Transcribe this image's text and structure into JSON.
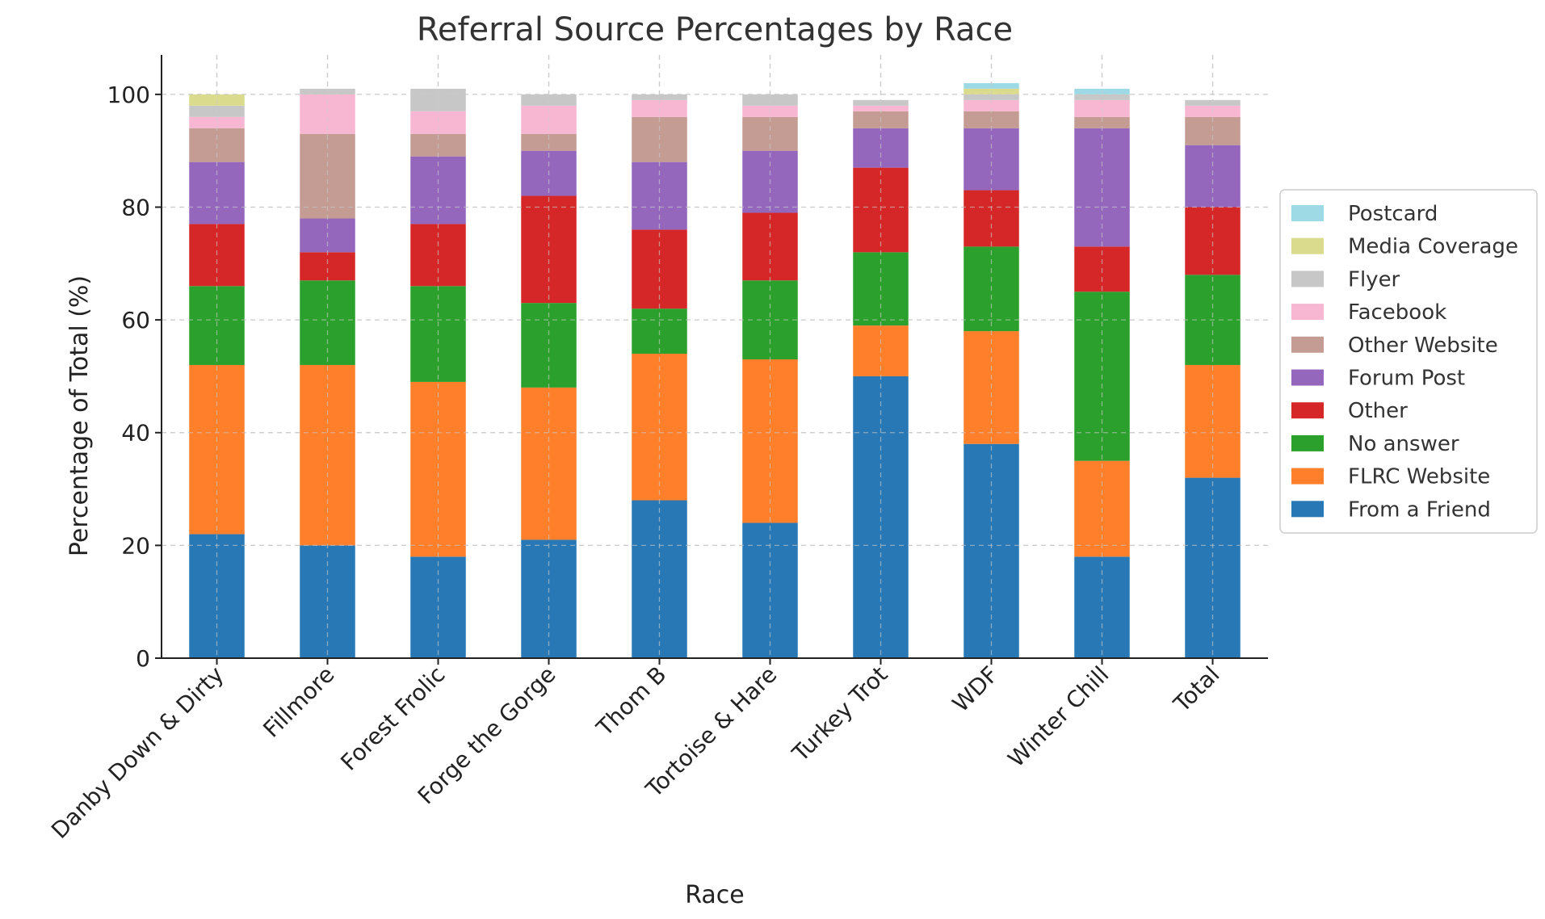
{
  "chart_data": {
    "type": "bar",
    "stacked": true,
    "title": "Referral Source Percentages by Race",
    "xlabel": "Race",
    "ylabel": "Percentage of Total (%)",
    "ylim": [
      0,
      107
    ],
    "yticks": [
      0,
      20,
      40,
      60,
      80,
      100
    ],
    "grid": true,
    "legend_position": "right",
    "categories": [
      "Danby Down & Dirty",
      "Fillmore",
      "Forest Frolic",
      "Forge the Gorge",
      "Thom B",
      "Tortoise & Hare",
      "Turkey Trot",
      "WDF",
      "Winter Chill",
      "Total"
    ],
    "series": [
      {
        "name": "From a Friend",
        "color": "#2878b5",
        "values": [
          22,
          20,
          18,
          21,
          28,
          24,
          50,
          38,
          18,
          32
        ]
      },
      {
        "name": "FLRC Website",
        "color": "#ff7f2a",
        "values": [
          30,
          32,
          31,
          27,
          26,
          29,
          9,
          20,
          17,
          20
        ]
      },
      {
        "name": "No answer",
        "color": "#2ca02c",
        "values": [
          14,
          15,
          17,
          15,
          8,
          14,
          13,
          15,
          30,
          16
        ]
      },
      {
        "name": "Other",
        "color": "#d62728",
        "values": [
          11,
          5,
          11,
          19,
          14,
          12,
          15,
          10,
          8,
          12
        ]
      },
      {
        "name": "Forum Post",
        "color": "#9467bd",
        "values": [
          11,
          6,
          12,
          8,
          12,
          11,
          7,
          11,
          21,
          11
        ]
      },
      {
        "name": "Other Website",
        "color": "#c49c94",
        "values": [
          6,
          15,
          4,
          3,
          8,
          6,
          3,
          3,
          2,
          5
        ]
      },
      {
        "name": "Facebook",
        "color": "#f7b6d2",
        "values": [
          2,
          7,
          4,
          5,
          3,
          2,
          1,
          2,
          3,
          2
        ]
      },
      {
        "name": "Flyer",
        "color": "#c7c7c7",
        "values": [
          2,
          1,
          4,
          2,
          1,
          2,
          1,
          1,
          1,
          1
        ]
      },
      {
        "name": "Media Coverage",
        "color": "#dbdb8d",
        "values": [
          2,
          0,
          0,
          0,
          0,
          0,
          0,
          1,
          0,
          0
        ]
      },
      {
        "name": "Postcard",
        "color": "#9edae5",
        "values": [
          0,
          0,
          0,
          0,
          0,
          0,
          0,
          1,
          1,
          0
        ]
      }
    ]
  }
}
